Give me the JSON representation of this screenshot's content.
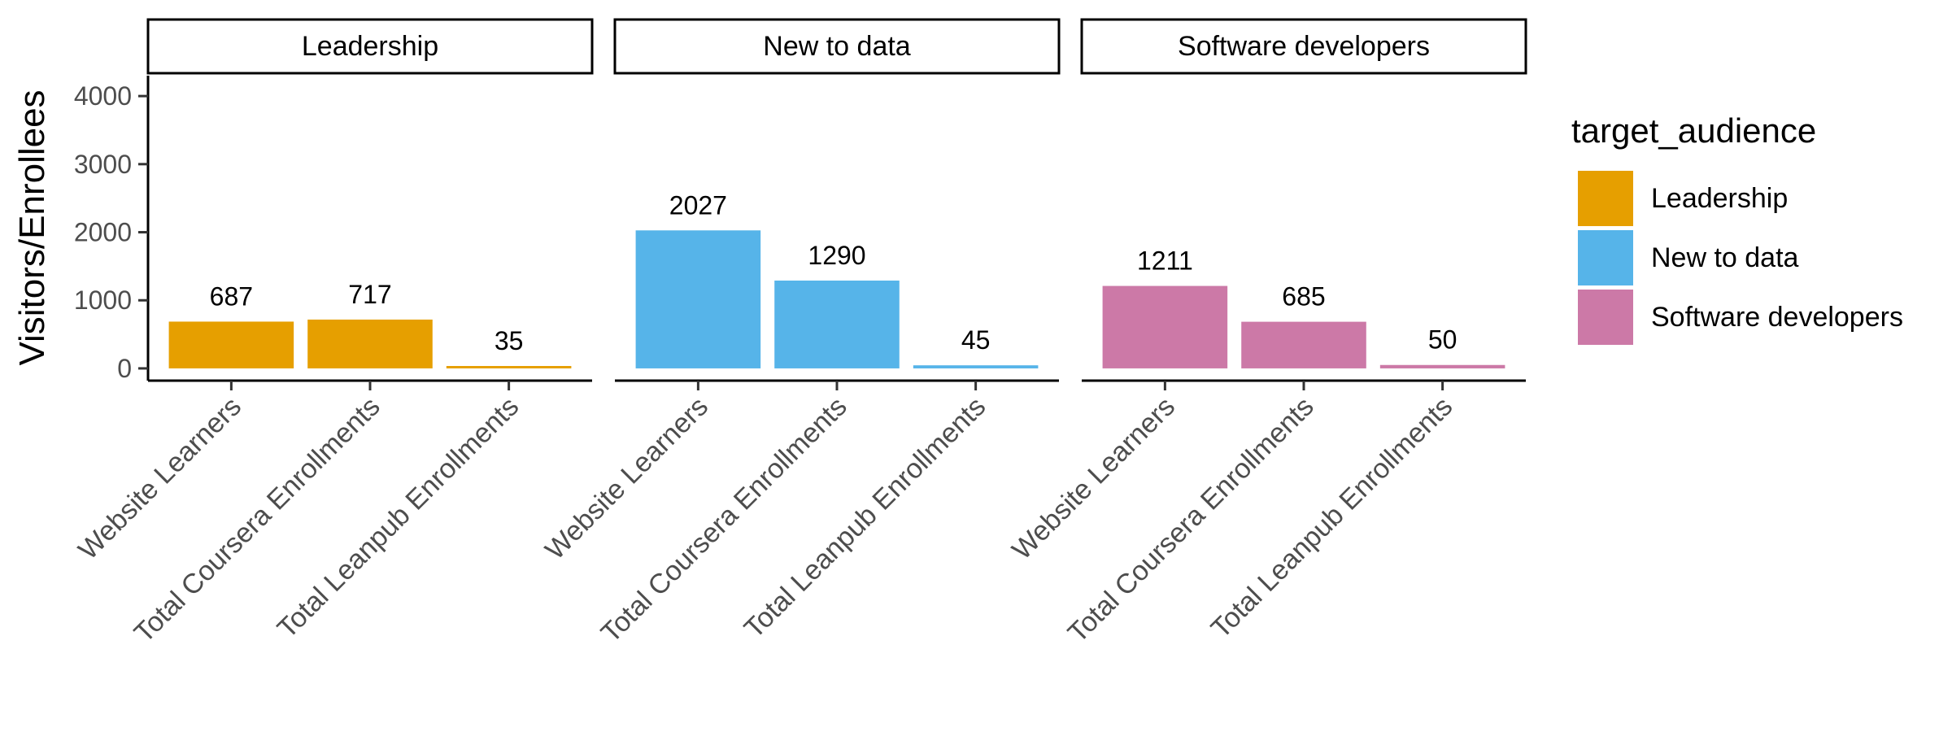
{
  "chart_data": {
    "type": "bar",
    "facet_by": "target_audience",
    "facets": [
      "Leadership",
      "New to data",
      "Software developers"
    ],
    "categories": [
      "Website Learners",
      "Total Coursera Enrollments",
      "Total Leanpub Enrollments"
    ],
    "series": [
      {
        "name": "Leadership",
        "color": "#E69F00",
        "values": [
          687,
          717,
          35
        ]
      },
      {
        "name": "New to data",
        "color": "#56B4E9",
        "values": [
          2027,
          1290,
          45
        ]
      },
      {
        "name": "Software developers",
        "color": "#CC79A7",
        "values": [
          1211,
          685,
          50
        ]
      }
    ],
    "ylabel": "Visitors/Enrollees",
    "xlabel": "",
    "ylim": [
      -180,
      4300
    ],
    "yticks": [
      0,
      1000,
      2000,
      3000,
      4000
    ],
    "grid": false,
    "legend": {
      "title": "target_audience",
      "position": "right"
    }
  }
}
